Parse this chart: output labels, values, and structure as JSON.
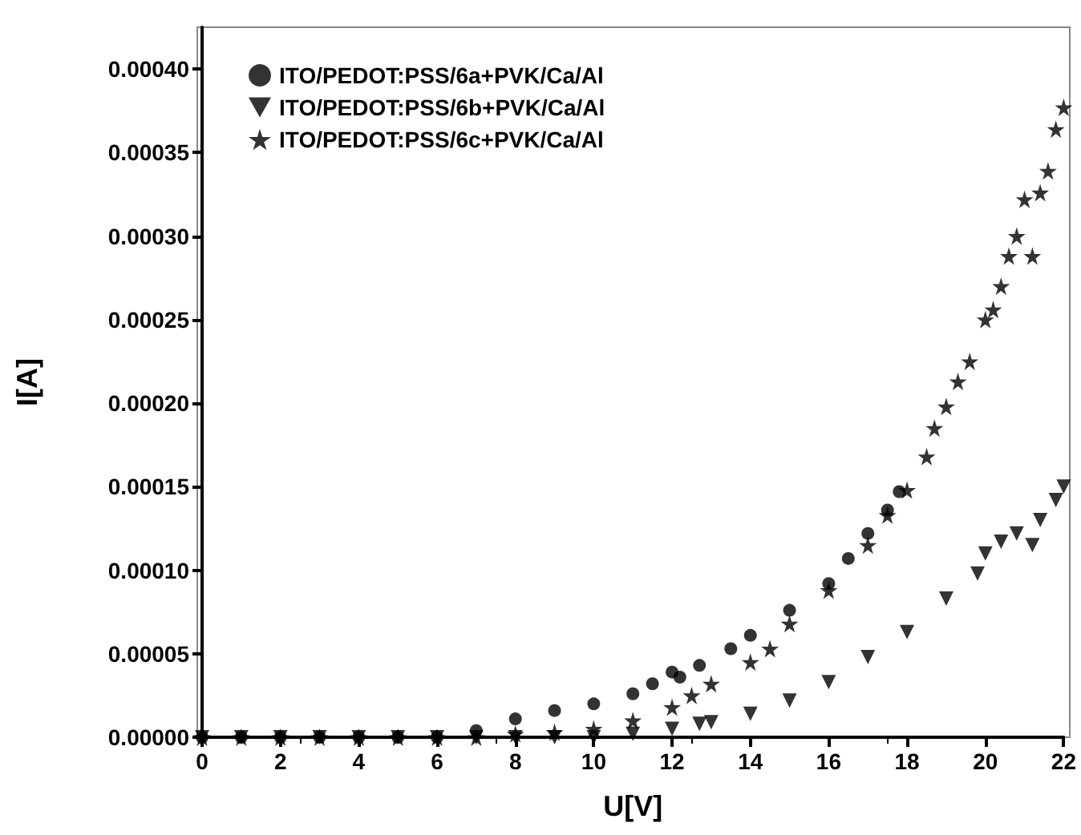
{
  "chart_data": {
    "type": "scatter",
    "xlabel": "U[V]",
    "ylabel": "I[A]",
    "xlim": [
      0,
      22
    ],
    "xticks": [
      0,
      2,
      4,
      6,
      8,
      10,
      12,
      14,
      16,
      18,
      20,
      22
    ],
    "ylim": [
      0,
      0.000425
    ],
    "yticks": [
      {
        "value": 0,
        "label": "0.00000"
      },
      {
        "value": 5e-05,
        "label": "0.00005"
      },
      {
        "value": 0.0001,
        "label": "0.00010"
      },
      {
        "value": 0.00015,
        "label": "0.00015"
      },
      {
        "value": 0.0002,
        "label": "0.00020"
      },
      {
        "value": 0.00025,
        "label": "0.00025"
      },
      {
        "value": 0.0003,
        "label": "0.00030"
      },
      {
        "value": 0.00035,
        "label": "0.00035"
      },
      {
        "value": 0.0004,
        "label": "0.00040"
      }
    ],
    "grid": false,
    "legend": "top left",
    "series": [
      {
        "name": "ITO/PEDOT:PSS/6a+PVK/Ca/Al",
        "color": "#000000",
        "marker": "circle",
        "x": [
          0,
          1,
          2,
          3,
          4,
          5,
          6,
          7,
          8,
          9,
          10,
          11,
          11.5,
          12,
          12.2,
          12.7,
          13.5,
          14,
          15,
          16,
          16.5,
          17,
          17.5,
          17.8
        ],
        "values": [
          0,
          0,
          0,
          0,
          0,
          0,
          0,
          4e-06,
          1.1e-05,
          1.6e-05,
          2e-05,
          2.6e-05,
          3.2e-05,
          3.9e-05,
          3.6e-05,
          4.3e-05,
          5.3e-05,
          6.1e-05,
          7.6e-05,
          9.2e-05,
          0.000107,
          0.000122,
          0.000136,
          0.000147
        ]
      },
      {
        "name": "ITO/PEDOT:PSS/6b+PVK/Ca/Al",
        "color": "#000000",
        "marker": "triangle",
        "x": [
          0,
          1,
          2,
          3,
          4,
          5,
          6,
          7,
          8,
          9,
          10,
          11,
          12,
          12.7,
          13,
          14,
          15,
          16,
          17,
          18,
          19,
          19.8,
          20,
          20.4,
          20.8,
          21.2,
          21.4,
          21.8,
          22
        ],
        "values": [
          0,
          0,
          0,
          0,
          0,
          0,
          0,
          0,
          0,
          0,
          0,
          2e-06,
          5e-06,
          8e-06,
          9e-06,
          1.4e-05,
          2.2e-05,
          3.3e-05,
          4.8e-05,
          6.3e-05,
          8.3e-05,
          9.8e-05,
          0.00011,
          0.000117,
          0.000122,
          0.000115,
          0.00013,
          0.000142,
          0.00015
        ]
      },
      {
        "name": "ITO/PEDOT:PSS/6c+PVK/Ca/Al",
        "color": "#000000",
        "marker": "star",
        "x": [
          0,
          1,
          2,
          3,
          4,
          5,
          6,
          7,
          8,
          9,
          10,
          11,
          12,
          12.5,
          13,
          14,
          14.5,
          15,
          16,
          17,
          17.5,
          18,
          18.5,
          18.7,
          19,
          19.3,
          19.6,
          20,
          20.2,
          20.4,
          20.6,
          20.8,
          21,
          21.2,
          21.4,
          21.6,
          21.8,
          22
        ],
        "values": [
          0,
          0,
          0,
          0,
          0,
          0,
          0,
          0,
          2e-06,
          3e-06,
          5e-06,
          1e-05,
          1.8e-05,
          2.5e-05,
          3.2e-05,
          4.5e-05,
          5.3e-05,
          6.8e-05,
          8.8e-05,
          0.000115,
          0.000133,
          0.000148,
          0.000168,
          0.000185,
          0.000198,
          0.000213,
          0.000225,
          0.00025,
          0.000256,
          0.00027,
          0.000288,
          0.0003,
          0.000322,
          0.000288,
          0.000326,
          0.000339,
          0.000364,
          0.000377
        ]
      }
    ]
  }
}
